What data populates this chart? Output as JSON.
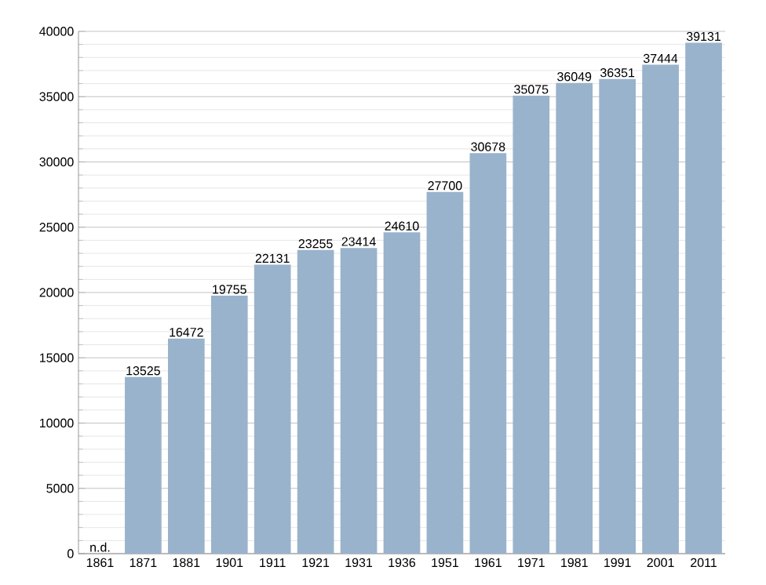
{
  "chart_data": {
    "type": "bar",
    "categories": [
      "1861",
      "1871",
      "1881",
      "1901",
      "1911",
      "1921",
      "1931",
      "1936",
      "1951",
      "1961",
      "1971",
      "1981",
      "1991",
      "2001",
      "2011"
    ],
    "values": [
      null,
      13525,
      16472,
      19755,
      22131,
      23255,
      23414,
      24610,
      27700,
      30678,
      35075,
      36049,
      36351,
      37444,
      39131
    ],
    "value_labels": [
      "n.d.",
      "13525",
      "16472",
      "19755",
      "22131",
      "23255",
      "23414",
      "24610",
      "27700",
      "30678",
      "35075",
      "36049",
      "36351",
      "37444",
      "39131"
    ],
    "color": "#9ab3cc",
    "ylim": [
      0,
      40000
    ],
    "yticks": [
      0,
      5000,
      10000,
      15000,
      20000,
      25000,
      30000,
      35000,
      40000
    ],
    "grid": "y"
  }
}
